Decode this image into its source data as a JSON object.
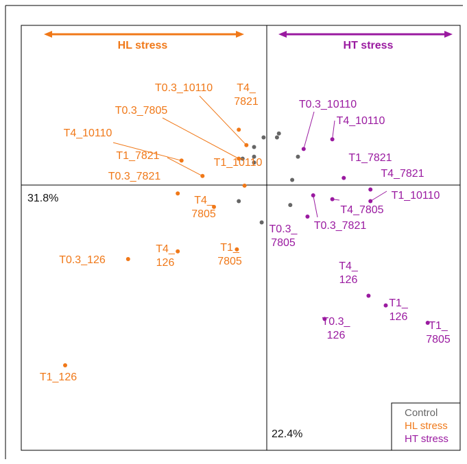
{
  "chart_data": {
    "type": "scatter",
    "title": "",
    "xlabel": "",
    "ylabel": "",
    "axis_percent": {
      "horizontal_axis": "31.8%",
      "vertical_axis": "22.4%"
    },
    "arrow_labels": {
      "left": "HL stress",
      "right": "HT stress"
    },
    "legend_placement": "bottom-right",
    "grid": false,
    "colors": {
      "Control": "#666666",
      "HL stress": "#f07818",
      "HT stress": "#9a1aa0"
    },
    "legend": [
      "Control",
      "HL stress",
      "HT stress"
    ],
    "series": [
      {
        "name": "Control",
        "points": [
          {
            "x": -0.14,
            "y": 0.21
          },
          {
            "x": -0.08,
            "y": 0.27
          },
          {
            "x": -0.03,
            "y": 0.32
          },
          {
            "x": -0.08,
            "y": 0.22
          },
          {
            "x": -0.08,
            "y": 0.19
          },
          {
            "x": 0.04,
            "y": 0.32
          },
          {
            "x": 0.05,
            "y": 0.34
          },
          {
            "x": 0.15,
            "y": 0.22
          },
          {
            "x": 0.12,
            "y": 0.1
          },
          {
            "x": -0.16,
            "y": -0.01
          },
          {
            "x": -0.04,
            "y": -0.12
          },
          {
            "x": 0.11,
            "y": -0.03
          }
        ]
      },
      {
        "name": "HL stress",
        "points": [
          {
            "label": "T0.3_10110",
            "x": -0.12,
            "y": 0.28
          },
          {
            "label": "T4_7821",
            "x": -0.16,
            "y": 0.36
          },
          {
            "label": "T0.3_7805",
            "x": -0.16,
            "y": 0.21
          },
          {
            "label": "T4_10110",
            "x": -0.46,
            "y": 0.2
          },
          {
            "label": "T1_7821",
            "x": -0.35,
            "y": 0.12
          },
          {
            "label": "T1_10110",
            "x": -0.13,
            "y": 0.07
          },
          {
            "label": "T0.3_7821",
            "x": -0.48,
            "y": 0.03
          },
          {
            "label": "T4_7805",
            "x": -0.29,
            "y": -0.04
          },
          {
            "label": "T1_7805",
            "x": -0.17,
            "y": -0.26
          },
          {
            "label": "T4_126",
            "x": -0.48,
            "y": -0.27
          },
          {
            "label": "T0.3_126",
            "x": -0.74,
            "y": -0.31
          },
          {
            "label": "T1_126",
            "x": -1.07,
            "y": -0.86
          }
        ]
      },
      {
        "name": "HT stress",
        "points": [
          {
            "label": "T0.3_10110",
            "x": 0.18,
            "y": 0.26
          },
          {
            "label": "T4_10110",
            "x": 0.33,
            "y": 0.31
          },
          {
            "label": "T1_7821",
            "x": 0.39,
            "y": 0.11
          },
          {
            "label": "T4_7821",
            "x": 0.53,
            "y": 0.05
          },
          {
            "label": "T1_10110",
            "x": 0.53,
            "y": -0.01
          },
          {
            "label": "T4_7805",
            "x": 0.33,
            "y": -0.0
          },
          {
            "label": "T0.3_7821",
            "x": 0.23,
            "y": 0.02
          },
          {
            "label": "T0.3_7805",
            "x": 0.2,
            "y": -0.09
          },
          {
            "label": "T4_126",
            "x": 0.52,
            "y": -0.5
          },
          {
            "label": "T1_126",
            "x": 0.61,
            "y": -0.55
          },
          {
            "label": "T0.3_126",
            "x": 0.29,
            "y": -0.62
          },
          {
            "label": "T1_7805",
            "x": 0.83,
            "y": -0.64
          }
        ]
      }
    ],
    "xlim": [
      -1.3,
      1.0
    ],
    "ylim": [
      -1.3,
      0.9
    ]
  }
}
